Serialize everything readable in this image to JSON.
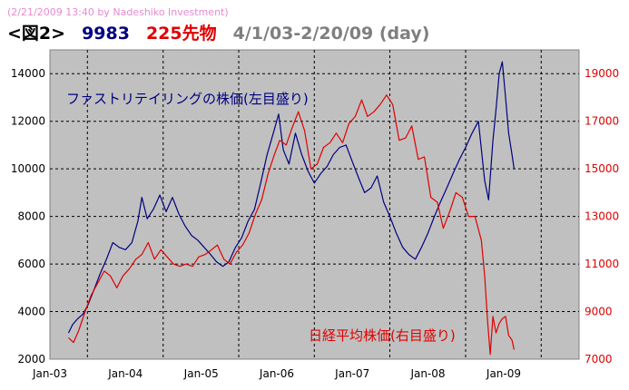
{
  "watermark": "(2/21/2009 13:40 by Nadeshiko Investment)",
  "title": {
    "prefix": "<図2>",
    "ticker": "9983",
    "futures": "225先物",
    "range": "4/1/03-2/20/09 (day)",
    "prefix_color": "#000000",
    "ticker_color": "#000080",
    "futures_color": "#e00000",
    "range_color": "#7f7f7f"
  },
  "chart_data": {
    "type": "line",
    "background": "#c0c0c0",
    "grid": true,
    "x_tick_labels": [
      "Jan-03",
      "Jan-04",
      "Jan-05",
      "Jan-06",
      "Jan-07",
      "Jan-08",
      "Jan-09"
    ],
    "x_range": [
      "2003-01-01",
      "2009-12-31"
    ],
    "y_left": {
      "range": [
        2000,
        15000
      ],
      "ticks": [
        2000,
        4000,
        6000,
        8000,
        10000,
        12000,
        14000
      ],
      "color": "#000000"
    },
    "y_right": {
      "range": [
        7000,
        20000
      ],
      "ticks": [
        7000,
        9000,
        11000,
        13000,
        15000,
        17000,
        19000
      ],
      "color": "#e00000"
    },
    "annotations": [
      {
        "text": "ファストリテイリングの株価(左目盛り)",
        "color": "#000080"
      },
      {
        "text": "日経平均株価(右目盛り)",
        "color": "#e00000"
      }
    ],
    "series": [
      {
        "axis": "left",
        "color": "#000080",
        "points": [
          [
            "2003-04-01",
            3100
          ],
          [
            "2003-04-20",
            3450
          ],
          [
            "2003-05-15",
            3700
          ],
          [
            "2003-06-10",
            3900
          ],
          [
            "2003-07-05",
            4300
          ],
          [
            "2003-08-01",
            4900
          ],
          [
            "2003-09-01",
            5600
          ],
          [
            "2003-10-01",
            6200
          ],
          [
            "2003-11-01",
            6900
          ],
          [
            "2003-12-01",
            6700
          ],
          [
            "2004-01-01",
            6600
          ],
          [
            "2004-02-01",
            6900
          ],
          [
            "2004-03-01",
            7800
          ],
          [
            "2004-03-20",
            8800
          ],
          [
            "2004-04-15",
            7900
          ],
          [
            "2004-05-15",
            8300
          ],
          [
            "2004-06-15",
            8900
          ],
          [
            "2004-07-15",
            8200
          ],
          [
            "2004-08-15",
            8800
          ],
          [
            "2004-09-15",
            8100
          ],
          [
            "2004-10-15",
            7600
          ],
          [
            "2004-11-15",
            7200
          ],
          [
            "2004-12-15",
            7000
          ],
          [
            "2005-01-15",
            6700
          ],
          [
            "2005-02-15",
            6400
          ],
          [
            "2005-03-15",
            6100
          ],
          [
            "2005-04-15",
            5900
          ],
          [
            "2005-05-15",
            6100
          ],
          [
            "2005-06-15",
            6700
          ],
          [
            "2005-07-15",
            7100
          ],
          [
            "2005-08-15",
            7800
          ],
          [
            "2005-09-15",
            8300
          ],
          [
            "2005-10-15",
            9400
          ],
          [
            "2005-11-15",
            10600
          ],
          [
            "2005-12-15",
            11500
          ],
          [
            "2006-01-10",
            12300
          ],
          [
            "2006-02-01",
            10800
          ],
          [
            "2006-03-01",
            10200
          ],
          [
            "2006-04-01",
            11500
          ],
          [
            "2006-05-01",
            10600
          ],
          [
            "2006-06-01",
            9900
          ],
          [
            "2006-07-01",
            9400
          ],
          [
            "2006-08-01",
            9800
          ],
          [
            "2006-09-01",
            10100
          ],
          [
            "2006-10-01",
            10600
          ],
          [
            "2006-11-01",
            10900
          ],
          [
            "2006-12-01",
            11000
          ],
          [
            "2007-01-01",
            10300
          ],
          [
            "2007-02-01",
            9600
          ],
          [
            "2007-03-01",
            9000
          ],
          [
            "2007-04-01",
            9200
          ],
          [
            "2007-05-01",
            9700
          ],
          [
            "2007-06-01",
            8600
          ],
          [
            "2007-07-01",
            8000
          ],
          [
            "2007-08-01",
            7300
          ],
          [
            "2007-09-01",
            6700
          ],
          [
            "2007-10-01",
            6400
          ],
          [
            "2007-11-01",
            6200
          ],
          [
            "2007-12-01",
            6700
          ],
          [
            "2008-01-01",
            7300
          ],
          [
            "2008-02-01",
            8000
          ],
          [
            "2008-03-01",
            8600
          ],
          [
            "2008-04-01",
            9200
          ],
          [
            "2008-05-01",
            9800
          ],
          [
            "2008-06-01",
            10400
          ],
          [
            "2008-07-01",
            10900
          ],
          [
            "2008-08-01",
            11500
          ],
          [
            "2008-09-01",
            12000
          ],
          [
            "2008-10-01",
            9500
          ],
          [
            "2008-10-20",
            8700
          ],
          [
            "2008-11-10",
            11200
          ],
          [
            "2008-11-25",
            12500
          ],
          [
            "2008-12-10",
            14000
          ],
          [
            "2008-12-25",
            14500
          ],
          [
            "2009-01-10",
            13000
          ],
          [
            "2009-01-25",
            11500
          ],
          [
            "2009-02-10",
            10600
          ],
          [
            "2009-02-20",
            10000
          ]
        ]
      },
      {
        "axis": "right",
        "color": "#e00000",
        "points": [
          [
            "2003-04-01",
            7900
          ],
          [
            "2003-04-25",
            7700
          ],
          [
            "2003-05-20",
            8200
          ],
          [
            "2003-06-20",
            9000
          ],
          [
            "2003-07-20",
            9700
          ],
          [
            "2003-08-20",
            10200
          ],
          [
            "2003-09-20",
            10700
          ],
          [
            "2003-10-20",
            10500
          ],
          [
            "2003-11-20",
            10000
          ],
          [
            "2003-12-20",
            10500
          ],
          [
            "2004-01-20",
            10800
          ],
          [
            "2004-02-20",
            11200
          ],
          [
            "2004-03-20",
            11400
          ],
          [
            "2004-04-20",
            11900
          ],
          [
            "2004-05-20",
            11200
          ],
          [
            "2004-06-20",
            11600
          ],
          [
            "2004-07-20",
            11300
          ],
          [
            "2004-08-20",
            11000
          ],
          [
            "2004-09-20",
            10900
          ],
          [
            "2004-10-20",
            11000
          ],
          [
            "2004-11-20",
            10900
          ],
          [
            "2004-12-20",
            11300
          ],
          [
            "2005-01-20",
            11400
          ],
          [
            "2005-02-20",
            11600
          ],
          [
            "2005-03-20",
            11800
          ],
          [
            "2005-04-20",
            11200
          ],
          [
            "2005-05-20",
            11000
          ],
          [
            "2005-06-20",
            11500
          ],
          [
            "2005-07-20",
            11800
          ],
          [
            "2005-08-20",
            12300
          ],
          [
            "2005-09-20",
            13100
          ],
          [
            "2005-10-20",
            13700
          ],
          [
            "2005-11-20",
            14800
          ],
          [
            "2005-12-20",
            15600
          ],
          [
            "2006-01-15",
            16200
          ],
          [
            "2006-02-15",
            16000
          ],
          [
            "2006-03-15",
            16700
          ],
          [
            "2006-04-15",
            17400
          ],
          [
            "2006-05-15",
            16600
          ],
          [
            "2006-06-15",
            15000
          ],
          [
            "2006-07-15",
            15200
          ],
          [
            "2006-08-15",
            15900
          ],
          [
            "2006-09-15",
            16100
          ],
          [
            "2006-10-15",
            16500
          ],
          [
            "2006-11-15",
            16100
          ],
          [
            "2006-12-15",
            16900
          ],
          [
            "2007-01-15",
            17200
          ],
          [
            "2007-02-15",
            17900
          ],
          [
            "2007-03-15",
            17200
          ],
          [
            "2007-04-15",
            17400
          ],
          [
            "2007-05-15",
            17700
          ],
          [
            "2007-06-15",
            18100
          ],
          [
            "2007-07-15",
            17700
          ],
          [
            "2007-08-15",
            16200
          ],
          [
            "2007-09-15",
            16300
          ],
          [
            "2007-10-15",
            16800
          ],
          [
            "2007-11-15",
            15400
          ],
          [
            "2007-12-15",
            15500
          ],
          [
            "2008-01-15",
            13800
          ],
          [
            "2008-02-15",
            13600
          ],
          [
            "2008-03-15",
            12500
          ],
          [
            "2008-04-15",
            13200
          ],
          [
            "2008-05-15",
            14000
          ],
          [
            "2008-06-15",
            13800
          ],
          [
            "2008-07-15",
            13000
          ],
          [
            "2008-08-15",
            13000
          ],
          [
            "2008-09-15",
            12000
          ],
          [
            "2008-10-01",
            10500
          ],
          [
            "2008-10-15",
            8600
          ],
          [
            "2008-10-28",
            7200
          ],
          [
            "2008-11-10",
            8800
          ],
          [
            "2008-11-25",
            8100
          ],
          [
            "2008-12-10",
            8500
          ],
          [
            "2008-12-25",
            8700
          ],
          [
            "2009-01-10",
            8800
          ],
          [
            "2009-01-25",
            8000
          ],
          [
            "2009-02-10",
            7800
          ],
          [
            "2009-02-20",
            7400
          ]
        ]
      }
    ]
  }
}
